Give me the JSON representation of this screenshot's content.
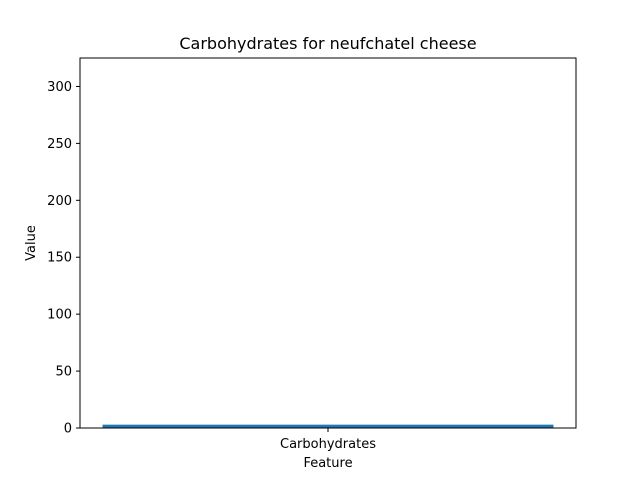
{
  "chart_data": {
    "type": "bar",
    "title": "Carbohydrates for neufchatel cheese",
    "xlabel": "Feature",
    "ylabel": "Value",
    "categories": [
      "Carbohydrates"
    ],
    "values": [
      2.94
    ],
    "ylim": [
      0,
      325
    ],
    "yticks": [
      0,
      50,
      100,
      150,
      200,
      250,
      300
    ],
    "grid": false,
    "colors": {
      "bar": "#1f77b4",
      "axis": "#000000",
      "background": "#ffffff"
    }
  }
}
